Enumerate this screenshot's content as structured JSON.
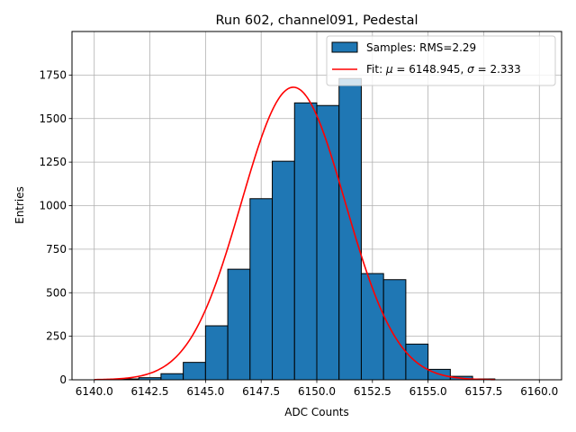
{
  "chart_data": {
    "type": "bar",
    "title": "Run 602, channel091, Pedestal",
    "xlabel": "ADC Counts",
    "ylabel": "Entries",
    "xlim": [
      6139.0,
      6161.0
    ],
    "ylim": [
      0,
      2000
    ],
    "xticks": [
      6140.0,
      6142.5,
      6145.0,
      6147.5,
      6150.0,
      6152.5,
      6155.0,
      6157.5,
      6160.0
    ],
    "xtick_labels": [
      "6140.0",
      "6142.5",
      "6145.0",
      "6147.5",
      "6150.0",
      "6152.5",
      "6155.0",
      "6157.5",
      "6160.0"
    ],
    "yticks": [
      0,
      250,
      500,
      750,
      1000,
      1250,
      1500,
      1750
    ],
    "ytick_labels": [
      "0",
      "250",
      "500",
      "750",
      "1000",
      "1250",
      "1500",
      "1750"
    ],
    "grid": true,
    "legend_position": "top-right",
    "bar_color": "#1f77b4",
    "fit_color": "#ff0000",
    "bin_edges": [
      6141,
      6142,
      6143,
      6144,
      6145,
      6146,
      6147,
      6148,
      6149,
      6150,
      6151,
      6152,
      6153,
      6154,
      6155,
      6156,
      6157
    ],
    "values": [
      5,
      12,
      35,
      100,
      310,
      635,
      1040,
      1255,
      1590,
      1575,
      1730,
      610,
      575,
      205,
      60,
      20,
      5
    ],
    "fit": {
      "mu": 6148.945,
      "sigma": 2.333,
      "amplitude": 1680,
      "x_range": [
        6140,
        6158
      ]
    },
    "legend": [
      {
        "label": "Samples: RMS=2.29",
        "kind": "bar"
      },
      {
        "label_prefix": "Fit: ",
        "mu_symbol": "μ",
        "mu_text": " = 6148.945, ",
        "sigma_symbol": "σ",
        "sigma_text": " = 2.333",
        "kind": "line"
      }
    ]
  }
}
